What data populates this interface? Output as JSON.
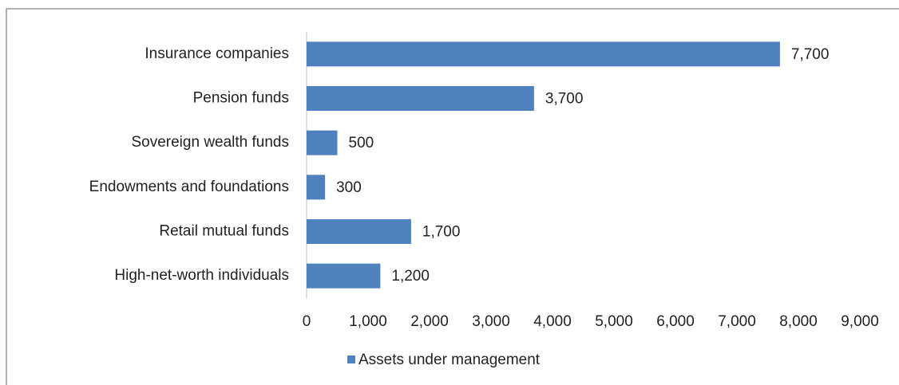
{
  "chart_data": {
    "type": "bar",
    "orientation": "horizontal",
    "categories": [
      "Insurance companies",
      "Pension funds",
      "Sovereign wealth funds",
      "Endowments and foundations",
      "Retail mutual funds",
      "High-net-worth individuals"
    ],
    "series": [
      {
        "name": "Assets under management",
        "color": "#4f81bd",
        "values": [
          7700,
          3700,
          500,
          300,
          1700,
          1200
        ],
        "value_labels": [
          "7,700",
          "3,700",
          "500",
          "300",
          "1,700",
          "1,200"
        ]
      }
    ],
    "xlim": [
      0,
      9000
    ],
    "xticks": [
      0,
      {
        "value": 1000,
        "label": "1,000"
      },
      {
        "value": 2000,
        "label": "2,000"
      },
      {
        "value": 3000,
        "label": "3,000"
      },
      {
        "value": 4000,
        "label": "4,000"
      },
      {
        "value": 5000,
        "label": "5,000"
      },
      {
        "value": 6000,
        "label": "6,000"
      },
      {
        "value": 7000,
        "label": "7,000"
      },
      {
        "value": 8000,
        "label": "8,000"
      },
      {
        "value": 9000,
        "label": "9,000"
      }
    ],
    "legend": "bottom",
    "grid": false
  }
}
